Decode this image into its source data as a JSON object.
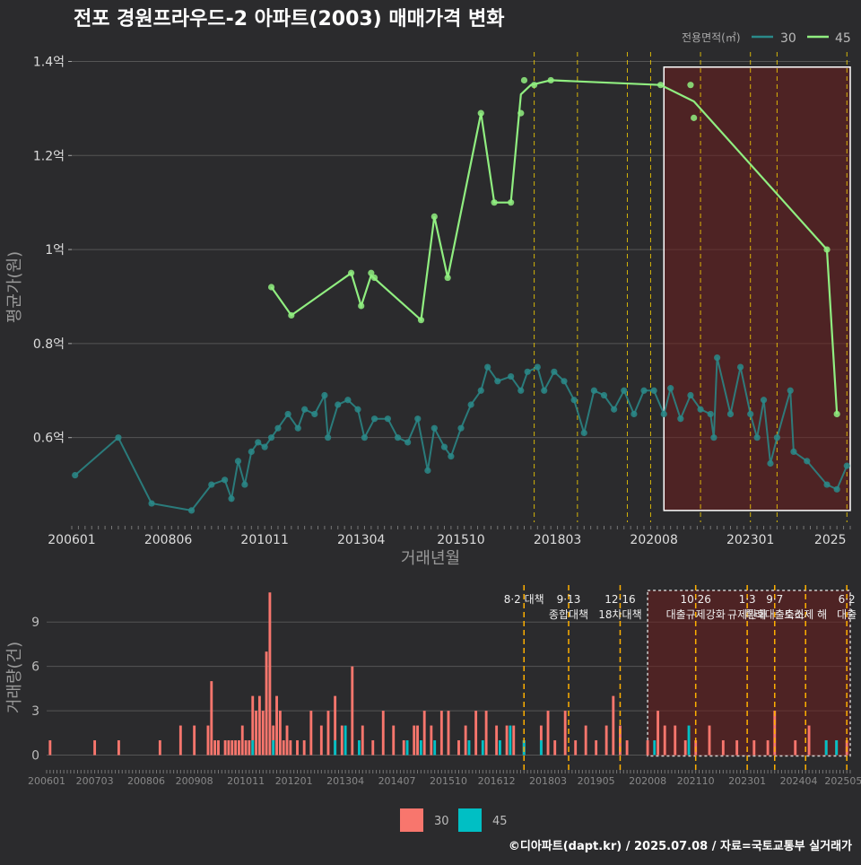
{
  "title": "전포 경원프라우드-2 아파트(2003) 매매가격 변화",
  "credit": "©디아파트(dapt.kr) / 2025.07.08 / 자료=국토교통부 실거래가",
  "colors": {
    "background": "#2b2b2d",
    "series_30": "#2a8a8a",
    "series_45": "#90ee80",
    "bar_30": "#f8766d",
    "bar_45": "#00bfc4",
    "policy_line": "#ffd700",
    "shade": "#6b1e1e"
  },
  "chart_data": [
    {
      "type": "line",
      "name": "price",
      "xlabel": "거래년월",
      "ylabel": "평균가(원)",
      "x_range": [
        "2006-01",
        "2025-07"
      ],
      "ylim": [
        0.42,
        1.42
      ],
      "y_unit": "억",
      "x_ticks": [
        "200601",
        "200806",
        "201011",
        "201304",
        "201510",
        "201803",
        "202008",
        "202301",
        "2025"
      ],
      "y_ticks": [
        {
          "value": 0.6,
          "label": "0.6억"
        },
        {
          "value": 0.8,
          "label": "0.8억"
        },
        {
          "value": 1.0,
          "label": "1억"
        },
        {
          "value": 1.2,
          "label": "1.2억"
        },
        {
          "value": 1.4,
          "label": "1.4억"
        }
      ],
      "grid": true,
      "legend": {
        "title": "전용면적(㎡)",
        "placement": "top-right"
      },
      "highlight_range": [
        "2020-11",
        "2025-07"
      ],
      "policy_dates": [
        "2017-08",
        "2018-09",
        "2019-12",
        "2020-07",
        "2021-10",
        "2023-01",
        "2023-09",
        "2025-06"
      ],
      "series": [
        {
          "name": "45",
          "points": [
            [
              "2011-01",
              0.92
            ],
            [
              "2011-07",
              0.86
            ],
            [
              "2013-01",
              0.95
            ],
            [
              "2013-04",
              0.88
            ],
            [
              "2013-07",
              0.95
            ],
            [
              "2013-08",
              0.94
            ],
            [
              "2014-10",
              0.85
            ],
            [
              "2015-02",
              1.07
            ],
            [
              "2015-06",
              0.94
            ],
            [
              "2016-04",
              1.29
            ],
            [
              "2016-08",
              1.1
            ],
            [
              "2017-01",
              1.1
            ],
            [
              "2017-04",
              1.29
            ],
            [
              "2017-05",
              1.36
            ],
            [
              "2017-08",
              1.35
            ],
            [
              "2018-01",
              1.36
            ],
            [
              "2020-10",
              1.35
            ],
            [
              "2021-07",
              1.35
            ],
            [
              "2021-08",
              1.28
            ],
            [
              "2024-12",
              1.0
            ],
            [
              "2025-03",
              0.65
            ]
          ],
          "trend": [
            [
              "2011-01",
              0.92
            ],
            [
              "2011-07",
              0.86
            ],
            [
              "2013-01",
              0.95
            ],
            [
              "2013-04",
              0.88
            ],
            [
              "2013-07",
              0.945
            ],
            [
              "2014-10",
              0.85
            ],
            [
              "2015-02",
              1.07
            ],
            [
              "2015-06",
              0.94
            ],
            [
              "2016-04",
              1.29
            ],
            [
              "2016-08",
              1.1
            ],
            [
              "2017-01",
              1.1
            ],
            [
              "2017-04",
              1.33
            ],
            [
              "2017-07",
              1.35
            ],
            [
              "2018-01",
              1.36
            ],
            [
              "2020-10",
              1.35
            ],
            [
              "2021-08",
              1.315
            ],
            [
              "2024-12",
              1.0
            ],
            [
              "2025-03",
              0.65
            ]
          ]
        },
        {
          "name": "30",
          "points": [
            [
              "2006-02",
              0.52
            ],
            [
              "2007-03",
              0.6
            ],
            [
              "2008-01",
              0.46
            ],
            [
              "2009-01",
              0.445
            ],
            [
              "2009-07",
              0.5
            ],
            [
              "2009-11",
              0.51
            ],
            [
              "2010-01",
              0.47
            ],
            [
              "2010-03",
              0.55
            ],
            [
              "2010-05",
              0.5
            ],
            [
              "2010-07",
              0.57
            ],
            [
              "2010-09",
              0.59
            ],
            [
              "2010-11",
              0.58
            ],
            [
              "2011-01",
              0.6
            ],
            [
              "2011-03",
              0.62
            ],
            [
              "2011-06",
              0.65
            ],
            [
              "2011-09",
              0.62
            ],
            [
              "2011-11",
              0.66
            ],
            [
              "2012-02",
              0.65
            ],
            [
              "2012-05",
              0.69
            ],
            [
              "2012-06",
              0.6
            ],
            [
              "2012-09",
              0.67
            ],
            [
              "2012-12",
              0.68
            ],
            [
              "2013-03",
              0.66
            ],
            [
              "2013-05",
              0.6
            ],
            [
              "2013-08",
              0.64
            ],
            [
              "2013-12",
              0.64
            ],
            [
              "2014-03",
              0.6
            ],
            [
              "2014-06",
              0.59
            ],
            [
              "2014-09",
              0.64
            ],
            [
              "2014-12",
              0.53
            ],
            [
              "2015-02",
              0.62
            ],
            [
              "2015-05",
              0.58
            ],
            [
              "2015-07",
              0.56
            ],
            [
              "2015-10",
              0.62
            ],
            [
              "2016-01",
              0.67
            ],
            [
              "2016-04",
              0.7
            ],
            [
              "2016-06",
              0.75
            ],
            [
              "2016-09",
              0.72
            ],
            [
              "2017-01",
              0.73
            ],
            [
              "2017-04",
              0.7
            ],
            [
              "2017-06",
              0.74
            ],
            [
              "2017-09",
              0.75
            ],
            [
              "2017-11",
              0.7
            ],
            [
              "2018-02",
              0.74
            ],
            [
              "2018-05",
              0.72
            ],
            [
              "2018-08",
              0.68
            ],
            [
              "2018-11",
              0.61
            ],
            [
              "2019-02",
              0.7
            ],
            [
              "2019-05",
              0.69
            ],
            [
              "2019-08",
              0.66
            ],
            [
              "2019-11",
              0.7
            ],
            [
              "2020-02",
              0.65
            ],
            [
              "2020-05",
              0.7
            ],
            [
              "2020-08",
              0.7
            ],
            [
              "2020-11",
              0.65
            ],
            [
              "2021-01",
              0.705
            ],
            [
              "2021-04",
              0.64
            ],
            [
              "2021-07",
              0.69
            ],
            [
              "2021-10",
              0.66
            ],
            [
              "2022-01",
              0.65
            ],
            [
              "2022-02",
              0.6
            ],
            [
              "2022-03",
              0.77
            ],
            [
              "2022-07",
              0.65
            ],
            [
              "2022-10",
              0.75
            ],
            [
              "2023-01",
              0.65
            ],
            [
              "2023-03",
              0.6
            ],
            [
              "2023-05",
              0.68
            ],
            [
              "2023-07",
              0.545
            ],
            [
              "2023-09",
              0.6
            ],
            [
              "2024-01",
              0.7
            ],
            [
              "2024-02",
              0.57
            ],
            [
              "2024-06",
              0.55
            ],
            [
              "2024-12",
              0.5
            ],
            [
              "2025-03",
              0.49
            ],
            [
              "2025-06",
              0.54
            ]
          ]
        }
      ]
    },
    {
      "type": "bar",
      "name": "volume",
      "xlabel": "",
      "ylabel": "거래량(건)",
      "ylim": [
        -1,
        11.5
      ],
      "y_ticks": [
        0,
        3,
        6,
        9
      ],
      "x_ticks": [
        "200601",
        "200703",
        "200806",
        "200908",
        "201011",
        "201201",
        "201304",
        "201407",
        "201510",
        "201612",
        "201803",
        "201905",
        "202008",
        "202110",
        "202301",
        "202404",
        "202505"
      ],
      "highlight_range": [
        "2020-08",
        "2025-07"
      ],
      "legend": {
        "entries": [
          "30",
          "45"
        ],
        "placement": "bottom"
      },
      "annotations": [
        {
          "date": "2017-08",
          "lines": [
            "8·2 대책"
          ]
        },
        {
          "date": "2018-09",
          "lines": [
            "9·13",
            "종합대책"
          ]
        },
        {
          "date": "2019-12",
          "lines": [
            "12·16",
            "18차대책"
          ]
        },
        {
          "date": "2021-10",
          "lines": [
            "10·26",
            "대출규제강화"
          ]
        },
        {
          "date": "2023-01",
          "lines": [
            "1·3",
            "규제완화"
          ]
        },
        {
          "date": "2023-09",
          "lines": [
            "9·7",
            "특례대출축소"
          ]
        },
        {
          "date": "2024-06",
          "lines": [
            "",
            "토허제 해"
          ]
        },
        {
          "date": "2025-06",
          "lines": [
            "6·2",
            "대출"
          ]
        }
      ],
      "bars_30": [
        [
          "2006-02",
          1
        ],
        [
          "2007-03",
          1
        ],
        [
          "2007-10",
          1
        ],
        [
          "2008-10",
          1
        ],
        [
          "2009-04",
          2
        ],
        [
          "2009-08",
          2
        ],
        [
          "2009-12",
          2
        ],
        [
          "2010-01",
          5
        ],
        [
          "2010-02",
          1
        ],
        [
          "2010-03",
          1
        ],
        [
          "2010-05",
          1
        ],
        [
          "2010-06",
          1
        ],
        [
          "2010-07",
          1
        ],
        [
          "2010-08",
          1
        ],
        [
          "2010-09",
          1
        ],
        [
          "2010-10",
          2
        ],
        [
          "2010-11",
          1
        ],
        [
          "2010-12",
          1
        ],
        [
          "2011-01",
          4
        ],
        [
          "2011-02",
          3
        ],
        [
          "2011-03",
          4
        ],
        [
          "2011-04",
          3
        ],
        [
          "2011-05",
          7
        ],
        [
          "2011-06",
          11
        ],
        [
          "2011-07",
          2
        ],
        [
          "2011-08",
          4
        ],
        [
          "2011-09",
          3
        ],
        [
          "2011-10",
          1
        ],
        [
          "2011-11",
          2
        ],
        [
          "2011-12",
          1
        ],
        [
          "2012-02",
          1
        ],
        [
          "2012-04",
          1
        ],
        [
          "2012-06",
          3
        ],
        [
          "2012-09",
          2
        ],
        [
          "2012-11",
          3
        ],
        [
          "2013-01",
          4
        ],
        [
          "2013-03",
          2
        ],
        [
          "2013-06",
          6
        ],
        [
          "2013-09",
          2
        ],
        [
          "2013-12",
          1
        ],
        [
          "2014-03",
          3
        ],
        [
          "2014-06",
          2
        ],
        [
          "2014-09",
          1
        ],
        [
          "2014-12",
          2
        ],
        [
          "2015-01",
          2
        ],
        [
          "2015-03",
          3
        ],
        [
          "2015-05",
          2
        ],
        [
          "2015-08",
          3
        ],
        [
          "2015-10",
          3
        ],
        [
          "2016-01",
          1
        ],
        [
          "2016-03",
          2
        ],
        [
          "2016-06",
          3
        ],
        [
          "2016-09",
          3
        ],
        [
          "2016-12",
          2
        ],
        [
          "2017-03",
          2
        ],
        [
          "2017-05",
          2
        ],
        [
          "2017-08",
          1
        ],
        [
          "2018-01",
          2
        ],
        [
          "2018-03",
          3
        ],
        [
          "2018-05",
          1
        ],
        [
          "2018-08",
          3
        ],
        [
          "2018-11",
          1
        ],
        [
          "2019-02",
          2
        ],
        [
          "2019-05",
          1
        ],
        [
          "2019-08",
          2
        ],
        [
          "2019-10",
          4
        ],
        [
          "2019-12",
          2
        ],
        [
          "2020-02",
          1
        ],
        [
          "2020-08",
          1
        ],
        [
          "2020-11",
          3
        ],
        [
          "2021-01",
          2
        ],
        [
          "2021-04",
          2
        ],
        [
          "2021-07",
          1
        ],
        [
          "2021-10",
          1
        ],
        [
          "2022-02",
          2
        ],
        [
          "2022-06",
          1
        ],
        [
          "2022-10",
          1
        ],
        [
          "2023-03",
          1
        ],
        [
          "2023-07",
          1
        ],
        [
          "2023-09",
          3
        ],
        [
          "2024-03",
          1
        ],
        [
          "2024-07",
          2
        ],
        [
          "2024-12",
          1
        ],
        [
          "2025-03",
          1
        ],
        [
          "2025-06",
          1
        ]
      ],
      "bars_45": [
        [
          "2011-01",
          1
        ],
        [
          "2011-07",
          1
        ],
        [
          "2013-01",
          1
        ],
        [
          "2013-04",
          2
        ],
        [
          "2013-08",
          1
        ],
        [
          "2014-10",
          1
        ],
        [
          "2015-02",
          1
        ],
        [
          "2015-06",
          1
        ],
        [
          "2016-04",
          1
        ],
        [
          "2016-08",
          1
        ],
        [
          "2017-01",
          1
        ],
        [
          "2017-04",
          2
        ],
        [
          "2017-08",
          1
        ],
        [
          "2018-01",
          1
        ],
        [
          "2020-10",
          1
        ],
        [
          "2021-08",
          2
        ],
        [
          "2024-12",
          1
        ],
        [
          "2025-03",
          1
        ]
      ]
    }
  ]
}
